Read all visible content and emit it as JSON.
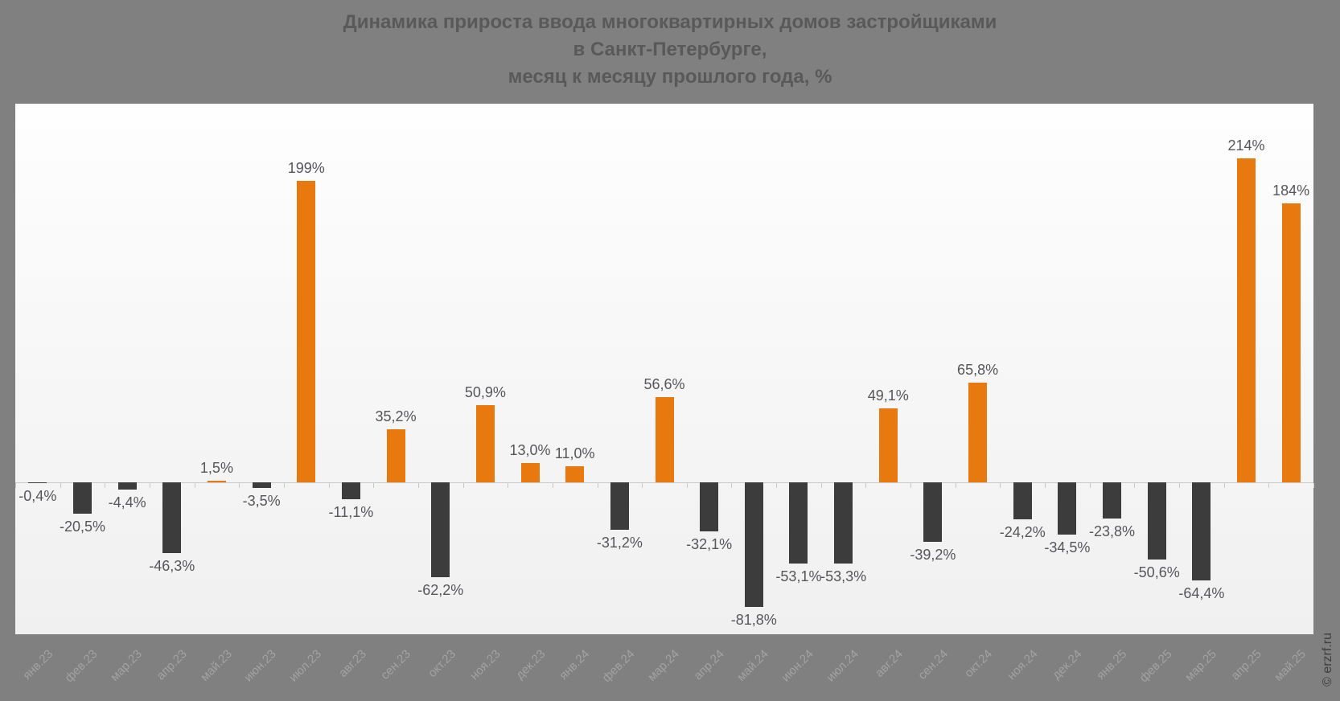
{
  "header": {
    "lines": [
      "Динамика прироста ввода многоквартирных домов застройщиками",
      "в Санкт-Петербурге,",
      "месяц к месяцу прошлого года, %"
    ]
  },
  "watermark": {
    "text": "© erzrf.ru"
  },
  "colors": {
    "page_background": "#808080",
    "plot_background_top": "#fefefe",
    "plot_background_bottom": "#f0f0f0",
    "positive_bar": "#e8790f",
    "negative_bar": "#3c3c3c",
    "axis_line": "#c9c9c9",
    "value_label": "#55565a",
    "month_label": "#a2a2a2",
    "title_text": "#595959",
    "watermark_text": "#3e3e3e"
  },
  "chart_data": {
    "type": "bar",
    "title": "Динамика прироста ввода многоквартирных домов застройщиками в Санкт-Петербурге, месяц к месяцу прошлого года, %",
    "xlabel": "",
    "ylabel": "",
    "ylim": [
      -100,
      250
    ],
    "grid": false,
    "legend": false,
    "bar_color_rule": "positive values orange, negative values dark gray",
    "categories": [
      "янв.23",
      "фев.23",
      "мар.23",
      "апр.23",
      "май.23",
      "июн.23",
      "июл.23",
      "авг.23",
      "сен.23",
      "окт.23",
      "ноя.23",
      "дек.23",
      "янв.24",
      "фев.24",
      "мар.24",
      "апр.24",
      "май.24",
      "июн.24",
      "июл.24",
      "авг.24",
      "сен.24",
      "окт.24",
      "ноя.24",
      "дек.24",
      "янв.25",
      "фев.25",
      "мар.25",
      "апр.25",
      "май.25"
    ],
    "values": [
      -0.4,
      -20.5,
      -4.4,
      -46.3,
      1.5,
      -3.5,
      199,
      -11.1,
      35.2,
      -62.2,
      50.9,
      13.0,
      11.0,
      -31.2,
      56.6,
      -32.1,
      -81.8,
      -53.1,
      -53.3,
      49.1,
      -39.2,
      65.8,
      -24.2,
      -34.5,
      -23.8,
      -50.6,
      -64.4,
      214,
      184
    ],
    "value_labels": [
      "-0,4%",
      "-20,5%",
      "-4,4%",
      "-46,3%",
      "1,5%",
      "-3,5%",
      "199%",
      "-11,1%",
      "35,2%",
      "-62,2%",
      "50,9%",
      "13,0%",
      "11,0%",
      "-31,2%",
      "56,6%",
      "-32,1%",
      "-81,8%",
      "-53,1%",
      "-53,3%",
      "49,1%",
      "-39,2%",
      "65,8%",
      "-24,2%",
      "-34,5%",
      "-23,8%",
      "-50,6%",
      "-64,4%",
      "214%",
      "184%"
    ]
  }
}
